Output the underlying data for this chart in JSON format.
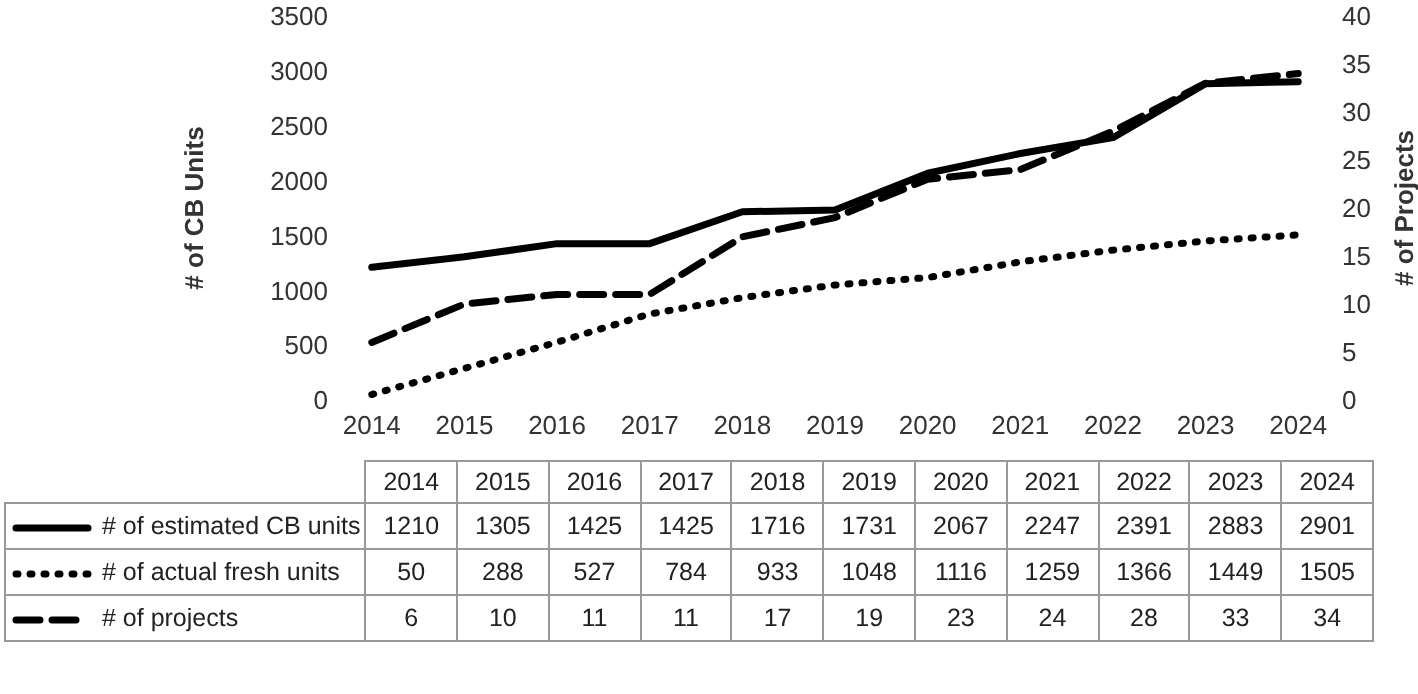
{
  "chart_data": {
    "type": "line",
    "categories": [
      "2014",
      "2015",
      "2016",
      "2017",
      "2018",
      "2019",
      "2020",
      "2021",
      "2022",
      "2023",
      "2024"
    ],
    "series": [
      {
        "name": "# of estimated CB units",
        "color": "#000000",
        "line_style": "solid",
        "values": [
          1210,
          1305,
          1425,
          1425,
          1716,
          1731,
          2067,
          2247,
          2391,
          2883,
          2901
        ]
      },
      {
        "name": "# of actual fresh units",
        "color": "#000000",
        "line_style": "dotted",
        "values": [
          50,
          288,
          527,
          784,
          933,
          1048,
          1116,
          1259,
          1366,
          1449,
          1505
        ]
      },
      {
        "name": "# of projects",
        "color": "#000000",
        "line_style": "dashed",
        "axis": "y2",
        "values": [
          6,
          10,
          11,
          11,
          17,
          19,
          23,
          24,
          28,
          33,
          34
        ]
      }
    ],
    "ylabel": "# of CB Units",
    "y2label": "# of Projects",
    "ylim": [
      0,
      3500
    ],
    "yticks": [
      0,
      500,
      1000,
      1500,
      2000,
      2500,
      3000,
      3500
    ],
    "y2lim": [
      0,
      40
    ],
    "y2ticks": [
      0,
      5,
      10,
      15,
      20,
      25,
      30,
      35,
      40
    ],
    "grid": false,
    "legend": "bottom",
    "data_labels": true,
    "marker": "none"
  }
}
